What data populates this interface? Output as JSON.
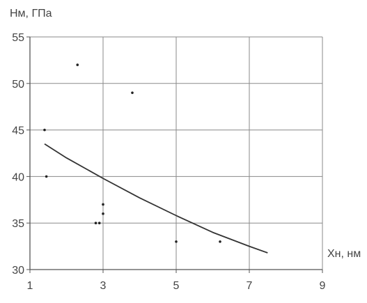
{
  "chart_data": {
    "type": "scatter",
    "ylabel": "Hм, ГПа",
    "xlabel": "Xн, нм",
    "xlim": [
      1,
      9
    ],
    "ylim": [
      30,
      55
    ],
    "xticks": [
      1,
      3,
      5,
      7,
      9
    ],
    "yticks": [
      30,
      35,
      40,
      45,
      50,
      55
    ],
    "xtick_labels": [
      "1",
      "3",
      "5",
      "7",
      "9"
    ],
    "ytick_labels": [
      "30",
      "35",
      "40",
      "45",
      "50",
      "55"
    ],
    "grid": true,
    "points": [
      {
        "x": 1.4,
        "y": 45
      },
      {
        "x": 1.45,
        "y": 40
      },
      {
        "x": 2.3,
        "y": 52
      },
      {
        "x": 2.8,
        "y": 35
      },
      {
        "x": 2.9,
        "y": 35
      },
      {
        "x": 3.0,
        "y": 37
      },
      {
        "x": 3.0,
        "y": 36
      },
      {
        "x": 3.8,
        "y": 49
      },
      {
        "x": 5.0,
        "y": 33
      },
      {
        "x": 6.2,
        "y": 33
      }
    ],
    "trend": [
      {
        "x": 1.4,
        "y": 43.5
      },
      {
        "x": 2.0,
        "y": 42.0
      },
      {
        "x": 3.0,
        "y": 39.8
      },
      {
        "x": 4.0,
        "y": 37.7
      },
      {
        "x": 5.0,
        "y": 35.8
      },
      {
        "x": 6.0,
        "y": 34.0
      },
      {
        "x": 7.0,
        "y": 32.5
      },
      {
        "x": 7.5,
        "y": 31.8
      }
    ],
    "colors": {
      "line": "#333333",
      "grid": "#8a8a8a",
      "point": "#222222",
      "text": "#444444"
    }
  }
}
